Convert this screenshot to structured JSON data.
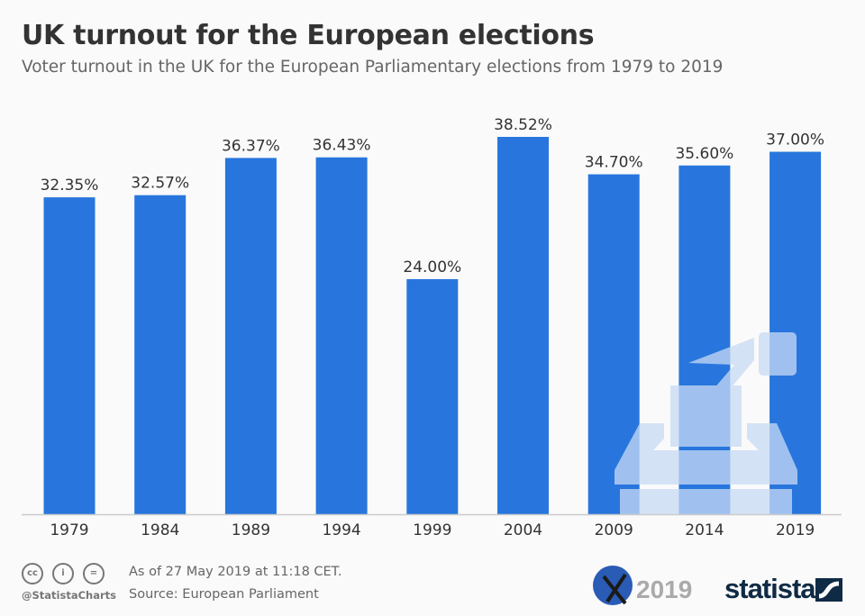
{
  "header": {
    "title": "UK turnout for the European elections",
    "subtitle": "Voter turnout in the UK for the European Parliamentary elections from 1979 to 2019"
  },
  "chart_data": {
    "type": "bar",
    "categories": [
      "1979",
      "1984",
      "1989",
      "1994",
      "1999",
      "2004",
      "2009",
      "2014",
      "2019"
    ],
    "values": [
      32.35,
      32.57,
      36.37,
      36.43,
      24.0,
      38.52,
      34.7,
      35.6,
      37.0
    ],
    "data_labels": [
      "32.35%",
      "32.57%",
      "36.37%",
      "36.43%",
      "24.00%",
      "38.52%",
      "34.70%",
      "35.60%",
      "37.00%"
    ],
    "ylim": [
      0,
      38.52
    ],
    "grid": false,
    "bar_color": "#2876dd"
  },
  "footer": {
    "date": "As of 27 May 2019 at 11:18 CET.",
    "source": "Source: European Parliament",
    "handle": "@StatistaCharts",
    "cc_icons": [
      "cc-icon",
      "by-icon",
      "nd-icon"
    ],
    "cc_labels": [
      "cc",
      "i",
      "="
    ]
  },
  "logos": {
    "election_year": "2019",
    "brand": "statista"
  }
}
